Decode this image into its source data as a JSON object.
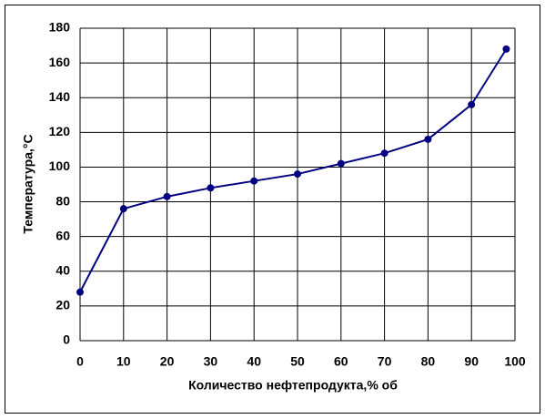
{
  "chart_data": {
    "type": "line",
    "x_label": "Количество нефтепродукта,% об",
    "y_label": "Температура,°С",
    "x": [
      0,
      10,
      20,
      30,
      40,
      50,
      60,
      70,
      80,
      90,
      98
    ],
    "series": [
      {
        "color": "#000080",
        "values": [
          28,
          76,
          83,
          88,
          92,
          96,
          102,
          108,
          116,
          136,
          168
        ]
      }
    ],
    "xlim": [
      0,
      100
    ],
    "xticks": [
      0,
      10,
      20,
      30,
      40,
      50,
      60,
      70,
      80,
      90,
      100
    ],
    "ylim": [
      0,
      180
    ],
    "yticks": [
      0,
      20,
      40,
      60,
      80,
      100,
      120,
      140,
      160,
      180
    ],
    "grid": true
  }
}
